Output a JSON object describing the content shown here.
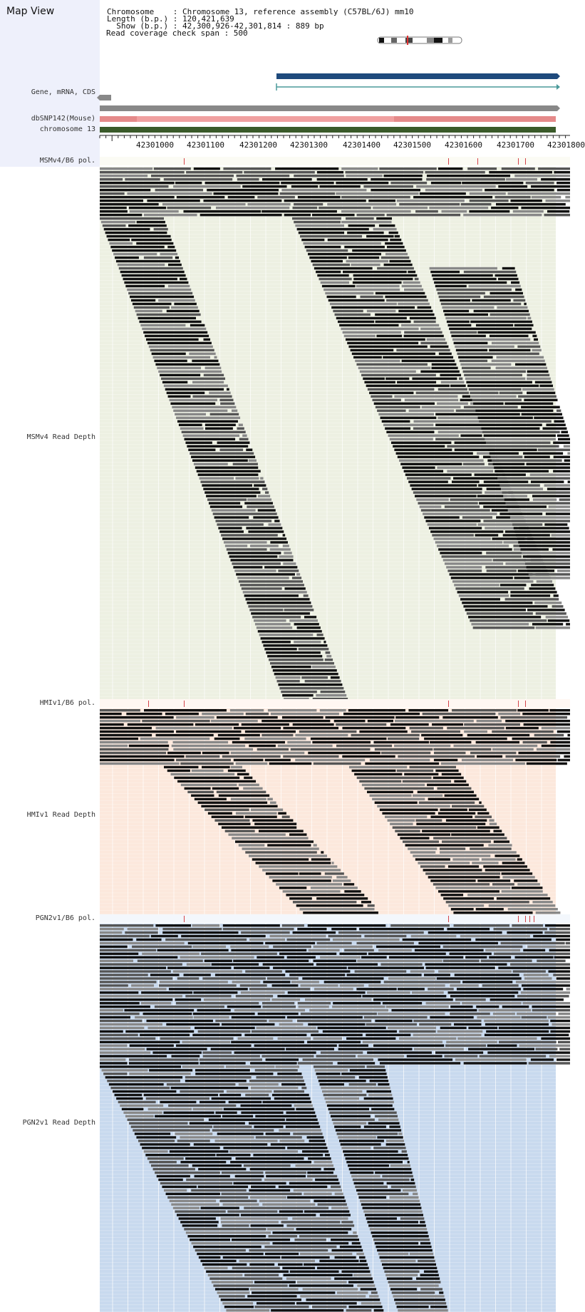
{
  "header": {
    "title": "Map View",
    "info_lines": [
      "Chromosome    : Chromosome 13, reference assembly (C57BL/6J) mm10",
      "Length (b.p.) : 120,421,639",
      "  Show (b.p.) : 42,300,926-42,301,814 : 889 bp",
      "Read coverage check span : 500"
    ]
  },
  "tracks": {
    "gene_label": "Gene, mRNA, CDS",
    "dbsnp_label": "dbSNP142(Mouse)",
    "chromosome_label": "chromosome 13",
    "ruler_labels": [
      "42301000",
      "42301100",
      "42301200",
      "42301300",
      "42301400",
      "42301500",
      "42301600",
      "42301700",
      "42301800"
    ],
    "msm_pol_label": "MSMv4/B6 pol.",
    "msm_depth_label": "MSMv4 Read Depth",
    "hmi_pol_label": "HMIv1/B6 pol.",
    "hmi_depth_label": "HMIv1 Read Depth",
    "pgn_pol_label": "PGN2v1/B6 pol.",
    "pgn_depth_label": "PGN2v1 Read Depth"
  },
  "colors": {
    "msm_bg": "#edf0e2",
    "hmi_bg": "#fce8dc",
    "pgn_bg": "#c8d9ee",
    "gene_blue": "#1e4a7c",
    "mrna_teal": "#4a9a9a",
    "cds_gray": "#888888",
    "dbsnp_pink": "#f09a9a",
    "chrom_green": "#3a5a2a",
    "pol_mark": "#d4434a",
    "read_dark": "#111111",
    "read_mid": "#555555",
    "read_light": "#888888"
  }
}
